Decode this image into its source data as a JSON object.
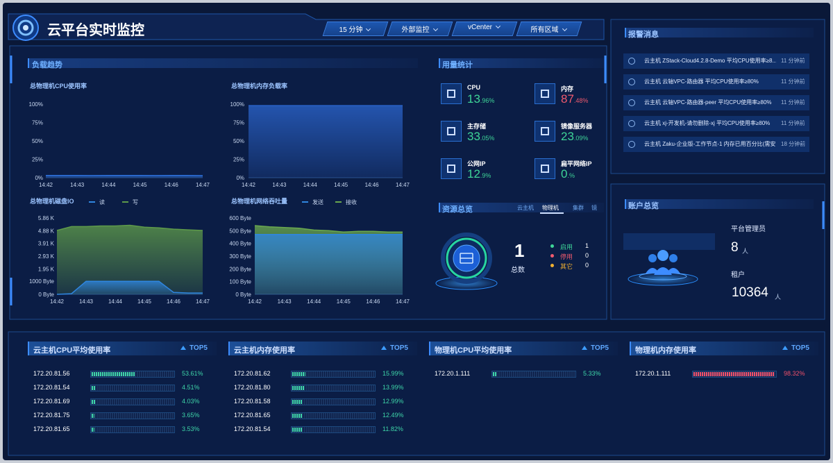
{
  "header": {
    "title": "云平台实时监控",
    "filters": [
      "15 分钟",
      "外部监控",
      "vCenter",
      "所有区域"
    ]
  },
  "load_trend": {
    "title": "负载趋势",
    "charts": [
      {
        "title": "总物理机CPU使用率",
        "ylim": [
          0,
          100
        ],
        "yticks": [
          {
            "value": 100,
            "label": "100%"
          },
          {
            "value": 75,
            "label": "75%"
          },
          {
            "value": 50,
            "label": "50%"
          },
          {
            "value": 25,
            "label": "25%"
          },
          {
            "value": 0,
            "label": "0%"
          }
        ],
        "xticks": [
          "14:42",
          "14:43",
          "14:44",
          "14:45",
          "14:46",
          "14:47"
        ],
        "series": [
          {
            "color": "#2d6fd8",
            "values": [
              3,
              3.1,
              3,
              2.9,
              3,
              3.1,
              3,
              2.9,
              3,
              3,
              2.8
            ]
          }
        ]
      },
      {
        "title": "总物理机内存负载率",
        "ylim": [
          0,
          100
        ],
        "yticks": [
          {
            "value": 100,
            "label": "100%"
          },
          {
            "value": 75,
            "label": "75%"
          },
          {
            "value": 50,
            "label": "50%"
          },
          {
            "value": 25,
            "label": "25%"
          },
          {
            "value": 0,
            "label": "0%"
          }
        ],
        "xticks": [
          "14:42",
          "14:43",
          "14:44",
          "14:45",
          "14:46",
          "14:47"
        ],
        "series": [
          {
            "color": "#2a62c8",
            "values": [
              98,
              98,
              98,
              98,
              98,
              98,
              98,
              98,
              98,
              98,
              98
            ]
          }
        ]
      },
      {
        "title": "总物理机磁盘IO",
        "ylim": [
          0,
          5860
        ],
        "yticks": [
          {
            "value": 5860,
            "label": "5.86 K"
          },
          {
            "value": 4880,
            "label": "4.88 K"
          },
          {
            "value": 3910,
            "label": "3.91 K"
          },
          {
            "value": 2930,
            "label": "2.93 K"
          },
          {
            "value": 1950,
            "label": "1.95 K"
          },
          {
            "value": 1000,
            "label": "1000 Byte"
          },
          {
            "value": 0,
            "label": "0 Byte"
          }
        ],
        "xticks": [
          "14:42",
          "14:43",
          "14:44",
          "14:45",
          "14:46",
          "14:47"
        ],
        "series": [
          {
            "name": "写",
            "color": "#5e9a4a",
            "values": [
              4900,
              5200,
              5200,
              5250,
              5250,
              5300,
              5150,
              5100,
              5000,
              4950,
              4900
            ]
          },
          {
            "name": "读",
            "color": "#2f86e0",
            "values": [
              0,
              50,
              1000,
              1000,
              1000,
              1000,
              1000,
              1000,
              150,
              100,
              100
            ]
          }
        ]
      },
      {
        "title": "总物理机网络吞吐量",
        "ylim": [
          0,
          600
        ],
        "yticks": [
          {
            "value": 600,
            "label": "600 Byte"
          },
          {
            "value": 500,
            "label": "500 Byte"
          },
          {
            "value": 400,
            "label": "400 Byte"
          },
          {
            "value": 300,
            "label": "300 Byte"
          },
          {
            "value": 200,
            "label": "200 Byte"
          },
          {
            "value": 100,
            "label": "100 Byte"
          },
          {
            "value": 0,
            "label": "0 Byte"
          }
        ],
        "xticks": [
          "14:42",
          "14:43",
          "14:44",
          "14:45",
          "14:46",
          "14:47"
        ],
        "series": [
          {
            "name": "接收",
            "color": "#6aa84f",
            "values": [
              540,
              530,
              525,
              520,
              505,
              500,
              490,
              495,
              495,
              490,
              490
            ]
          },
          {
            "name": "发送",
            "color": "#2f86e0",
            "values": [
              470,
              470,
              470,
              470,
              470,
              470,
              470,
              470,
              470,
              470,
              470
            ]
          }
        ]
      }
    ]
  },
  "usage": {
    "title": "用量统计",
    "items": [
      {
        "name": "CPU",
        "main": "13",
        "small": ".96%",
        "color": "#3ed598"
      },
      {
        "name": "内存",
        "main": "87",
        "small": ".48%",
        "color": "#f05a6e"
      },
      {
        "name": "主存储",
        "main": "33",
        "small": ".05%",
        "color": "#3ed598"
      },
      {
        "name": "镜像服务器",
        "main": "23",
        "small": ".09%",
        "color": "#3ed598"
      },
      {
        "name": "公网IP",
        "main": "12",
        "small": ".9%",
        "color": "#3ed598"
      },
      {
        "name": "扁平网络IP",
        "main": "0",
        "small": ".%",
        "color": "#3ed598"
      }
    ]
  },
  "resources": {
    "title": "资源总览",
    "tabs": [
      "云主机",
      "物理机",
      "集群",
      "镜"
    ],
    "total": 1,
    "total_label": "总数",
    "legend": [
      {
        "name": "启用",
        "value": 1,
        "color": "#3ed598"
      },
      {
        "name": "停用",
        "value": 0,
        "color": "#f05a6e"
      },
      {
        "name": "其它",
        "value": 0,
        "color": "#f0b030"
      }
    ]
  },
  "alerts": {
    "title": "报警消息",
    "items": [
      {
        "text": "云主机 ZStack-Cloud4.2.8-Demo 平均CPU使用率≥8...",
        "time": "11 分钟前"
      },
      {
        "text": "云主机 云轴VPC-路由器 平均CPU使用率≥80%",
        "time": "11 分钟前"
      },
      {
        "text": "云主机 云轴VPC-路由器-peer 平均CPU使用率≥80%",
        "time": "11 分钟前"
      },
      {
        "text": "云主机 xj-开发机-请勿删除-xj 平均CPU使用率≥80%",
        "time": "11 分钟前"
      },
      {
        "text": "云主机 Zaku-企业版-工作节点-1 内存已用百分比(需安...",
        "time": "18 分钟前"
      }
    ]
  },
  "account": {
    "title": "账户总览",
    "admin_label": "平台管理员",
    "admin_count": 8,
    "unit": "人",
    "tenant_label": "租户",
    "tenant_count": 10364
  },
  "top5": {
    "badge": "TOP5",
    "panels": [
      {
        "title": "云主机CPU平均使用率",
        "color": "#3ed5a8",
        "rows": [
          {
            "ip": "172.20.81.56",
            "value": 53.61,
            "label": "53.61%"
          },
          {
            "ip": "172.20.81.54",
            "value": 4.51,
            "label": "4.51%"
          },
          {
            "ip": "172.20.81.69",
            "value": 4.03,
            "label": "4.03%"
          },
          {
            "ip": "172.20.81.75",
            "value": 3.65,
            "label": "3.65%"
          },
          {
            "ip": "172.20.81.65",
            "value": 3.53,
            "label": "3.53%"
          }
        ]
      },
      {
        "title": "云主机内存使用率",
        "color": "#3ed5a8",
        "rows": [
          {
            "ip": "172.20.81.62",
            "value": 15.99,
            "label": "15.99%"
          },
          {
            "ip": "172.20.81.80",
            "value": 13.99,
            "label": "13.99%"
          },
          {
            "ip": "172.20.81.58",
            "value": 12.99,
            "label": "12.99%"
          },
          {
            "ip": "172.20.81.65",
            "value": 12.49,
            "label": "12.49%"
          },
          {
            "ip": "172.20.81.54",
            "value": 11.82,
            "label": "11.82%"
          }
        ]
      },
      {
        "title": "物理机CPU平均使用率",
        "color": "#3ed5a8",
        "rows": [
          {
            "ip": "172.20.1.111",
            "value": 5.33,
            "label": "5.33%"
          }
        ]
      },
      {
        "title": "物理机内存使用率",
        "color": "#f0506a",
        "rows": [
          {
            "ip": "172.20.1.111",
            "value": 98.32,
            "label": "98.32%"
          }
        ]
      }
    ]
  }
}
